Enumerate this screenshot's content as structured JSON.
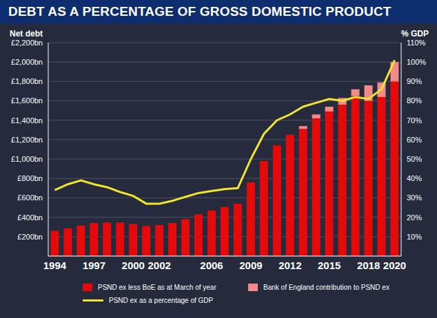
{
  "chart_data": {
    "type": "bar",
    "title": "DEBT AS A PERCENTAGE OF GROSS DOMESTIC PRODUCT",
    "y_label": "Net debt",
    "y2_label": "% GDP",
    "categories": [
      "1994",
      null,
      null,
      "1997",
      null,
      null,
      "2000",
      null,
      "2002",
      null,
      null,
      null,
      "2006",
      null,
      null,
      "2009",
      null,
      null,
      "2012",
      null,
      null,
      "2015",
      null,
      null,
      "2018",
      null,
      "2020"
    ],
    "stacked": true,
    "grid": true,
    "ylim": [
      0,
      2200
    ],
    "yticks": [
      {
        "value": 200,
        "label": "£200bn"
      },
      {
        "value": 400,
        "label": "£400bn"
      },
      {
        "value": 600,
        "label": "£600bn"
      },
      {
        "value": 800,
        "label": "£800bn"
      },
      {
        "value": 1000,
        "label": "£1,000bn"
      },
      {
        "value": 1200,
        "label": "£1,200bn"
      },
      {
        "value": 1400,
        "label": "£1,400bn"
      },
      {
        "value": 1600,
        "label": "£1,600bn"
      },
      {
        "value": 1800,
        "label": "£1,800bn"
      },
      {
        "value": 2000,
        "label": "£2,000bn"
      },
      {
        "value": 2200,
        "label": "£2,200bn"
      }
    ],
    "y2lim": [
      0,
      110
    ],
    "y2ticks": [
      {
        "value": 10,
        "label": "10%"
      },
      {
        "value": 20,
        "label": "20%"
      },
      {
        "value": 30,
        "label": "30%"
      },
      {
        "value": 40,
        "label": "40%"
      },
      {
        "value": 50,
        "label": "50%"
      },
      {
        "value": 60,
        "label": "60%"
      },
      {
        "value": 70,
        "label": "70%"
      },
      {
        "value": 80,
        "label": "80%"
      },
      {
        "value": 90,
        "label": "90%"
      },
      {
        "value": 100,
        "label": "100%"
      },
      {
        "value": 110,
        "label": "110%"
      }
    ],
    "series": [
      {
        "name": "PSND ex less BoE as at March of year",
        "type": "bar",
        "color": "#e40a0a",
        "values": [
          260,
          285,
          315,
          340,
          345,
          345,
          330,
          310,
          320,
          340,
          380,
          430,
          470,
          505,
          540,
          760,
          980,
          1140,
          1250,
          1310,
          1420,
          1490,
          1560,
          1650,
          1600,
          1640,
          1800
        ]
      },
      {
        "name": "Bank of England contribution to PSND ex",
        "type": "bar",
        "color": "#f28a8a",
        "values": [
          0,
          0,
          0,
          0,
          0,
          0,
          0,
          0,
          0,
          0,
          0,
          0,
          0,
          0,
          0,
          0,
          0,
          0,
          0,
          30,
          40,
          50,
          70,
          70,
          160,
          150,
          200
        ]
      },
      {
        "name": "PSND ex as a percentage of GDP",
        "type": "line",
        "axis": "y2",
        "color": "#f3e52b",
        "values": [
          34,
          37,
          39,
          37,
          35.5,
          33,
          31,
          27,
          27,
          28.5,
          30.5,
          32.5,
          33.5,
          34.5,
          35,
          50,
          63,
          70,
          73,
          77,
          79,
          81,
          80,
          82,
          81,
          86,
          101
        ]
      }
    ]
  }
}
